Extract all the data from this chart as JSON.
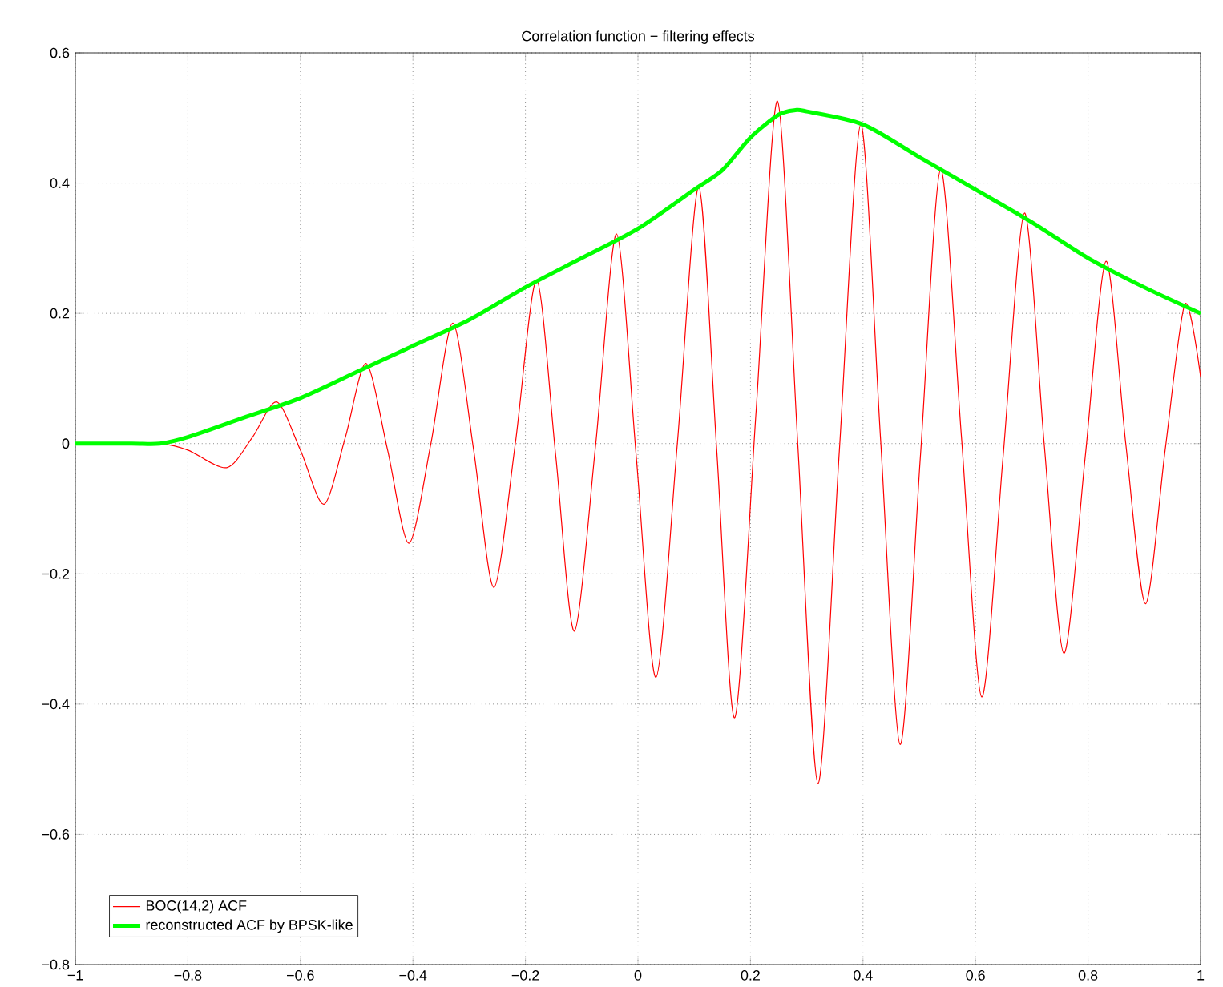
{
  "chart_data": {
    "type": "line",
    "title": "Correlation function − filtering effects",
    "xlim": [
      -1,
      1
    ],
    "ylim": [
      -0.8,
      0.6
    ],
    "xticks": [
      {
        "value": -1,
        "label": "−1"
      },
      {
        "value": -0.8,
        "label": "−0.8"
      },
      {
        "value": -0.6,
        "label": "−0.6"
      },
      {
        "value": -0.4,
        "label": "−0.4"
      },
      {
        "value": -0.2,
        "label": "−0.2"
      },
      0,
      0.2,
      0.4,
      0.6,
      0.8,
      1
    ],
    "yticks": [
      {
        "value": -0.8,
        "label": "−0.8"
      },
      {
        "value": -0.6,
        "label": "−0.6"
      },
      {
        "value": -0.4,
        "label": "−0.4"
      },
      {
        "value": -0.2,
        "label": "−0.2"
      },
      0,
      0.2,
      0.4,
      0.6
    ],
    "grid": true,
    "legend": "bottom left",
    "marker": "none",
    "series": [
      {
        "name": "BOC(14,2) ACF",
        "color": "#ff0000",
        "x": [
          -1,
          -0.9,
          -0.85,
          -0.8,
          -0.731,
          -0.685,
          -0.642,
          -0.6,
          -0.558,
          -0.52,
          -0.483,
          -0.445,
          -0.407,
          -0.368,
          -0.329,
          -0.292,
          -0.256,
          -0.218,
          -0.18,
          -0.146,
          -0.113,
          -0.075,
          -0.038,
          -0.003,
          0.032,
          0.07,
          0.108,
          0.14,
          0.172,
          0.21,
          0.248,
          0.284,
          0.32,
          0.358,
          0.396,
          0.431,
          0.466,
          0.502,
          0.538,
          0.575,
          0.611,
          0.649,
          0.687,
          0.722,
          0.757,
          0.795,
          0.832,
          0.867,
          0.902,
          0.937,
          0.972,
          1
        ],
        "values": [
          0,
          0,
          0,
          -0.01,
          -0.037,
          0.01,
          0.064,
          -0.01,
          -0.093,
          0.01,
          0.123,
          -0.01,
          -0.153,
          0.0,
          0.185,
          -0.01,
          -0.221,
          0.0,
          0.251,
          -0.02,
          -0.288,
          0.0,
          0.322,
          -0.02,
          -0.359,
          0.0,
          0.394,
          -0.01,
          -0.421,
          0.05,
          0.526,
          0.0,
          -0.522,
          -0.01,
          0.49,
          0.01,
          -0.462,
          -0.02,
          0.421,
          0.01,
          -0.389,
          -0.02,
          0.354,
          0.0,
          -0.322,
          -0.02,
          0.28,
          0.0,
          -0.246,
          -0.01,
          0.214,
          0.103
        ]
      },
      {
        "name": "reconstructed ACF by BPSK-like",
        "color": "#00ff00",
        "x": [
          -1,
          -0.9,
          -0.85,
          -0.8,
          -0.7,
          -0.6,
          -0.5,
          -0.4,
          -0.3,
          -0.2,
          -0.1,
          0,
          0.1,
          0.15,
          0.2,
          0.25,
          0.28,
          0.3,
          0.4,
          0.5,
          0.6,
          0.7,
          0.8,
          0.9,
          1
        ],
        "values": [
          0,
          0,
          0,
          0.01,
          0.04,
          0.07,
          0.11,
          0.15,
          0.19,
          0.24,
          0.285,
          0.33,
          0.39,
          0.42,
          0.47,
          0.505,
          0.512,
          0.51,
          0.49,
          0.44,
          0.39,
          0.34,
          0.285,
          0.24,
          0.2
        ]
      }
    ]
  }
}
